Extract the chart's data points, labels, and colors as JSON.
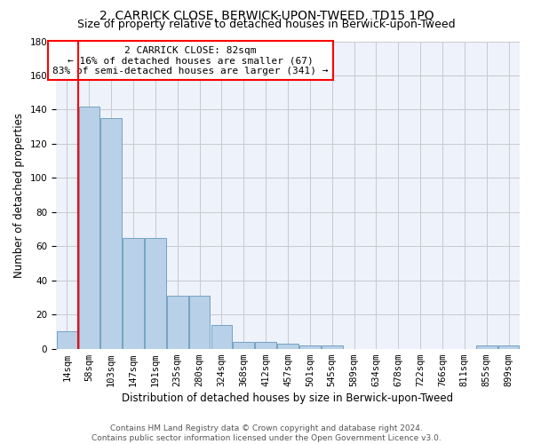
{
  "title": "2, CARRICK CLOSE, BERWICK-UPON-TWEED, TD15 1PQ",
  "subtitle": "Size of property relative to detached houses in Berwick-upon-Tweed",
  "xlabel": "Distribution of detached houses by size in Berwick-upon-Tweed",
  "ylabel": "Number of detached properties",
  "categories": [
    "14sqm",
    "58sqm",
    "103sqm",
    "147sqm",
    "191sqm",
    "235sqm",
    "280sqm",
    "324sqm",
    "368sqm",
    "412sqm",
    "457sqm",
    "501sqm",
    "545sqm",
    "589sqm",
    "634sqm",
    "678sqm",
    "722sqm",
    "766sqm",
    "811sqm",
    "855sqm",
    "899sqm"
  ],
  "values": [
    10,
    142,
    135,
    65,
    65,
    31,
    31,
    14,
    4,
    4,
    3,
    2,
    2,
    0,
    0,
    0,
    0,
    0,
    0,
    2,
    2
  ],
  "bar_color": "#b8d0e8",
  "bar_edge_color": "#6699bb",
  "vline_x": 0.5,
  "vline_color": "red",
  "ylim": [
    0,
    180
  ],
  "yticks": [
    0,
    20,
    40,
    60,
    80,
    100,
    120,
    140,
    160,
    180
  ],
  "annotation_text": "2 CARRICK CLOSE: 82sqm\n← 16% of detached houses are smaller (67)\n83% of semi-detached houses are larger (341) →",
  "annotation_box_color": "white",
  "annotation_box_edge_color": "red",
  "footer_line1": "Contains HM Land Registry data © Crown copyright and database right 2024.",
  "footer_line2": "Contains public sector information licensed under the Open Government Licence v3.0.",
  "bg_color": "#eef2fb",
  "grid_color": "#c8c8d0",
  "title_fontsize": 10,
  "subtitle_fontsize": 9,
  "axis_label_fontsize": 8.5,
  "tick_fontsize": 7.5,
  "annot_fontsize": 8,
  "footer_fontsize": 6.5
}
